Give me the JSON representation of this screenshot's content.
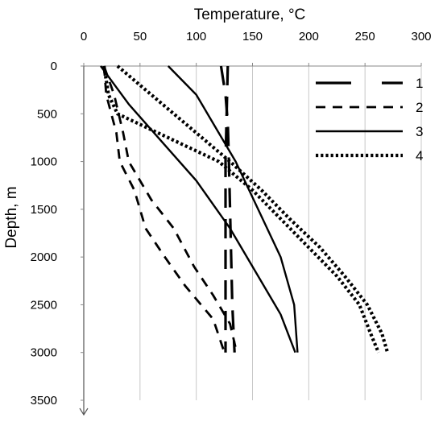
{
  "chart_data": {
    "type": "line",
    "xlabel": "Temperature, °C",
    "ylabel": "Depth, m",
    "x_axis_position": "top",
    "y_axis_inverted": true,
    "xlim": [
      0,
      300
    ],
    "ylim": [
      0,
      3500
    ],
    "x_ticks": [
      0,
      50,
      100,
      150,
      200,
      250,
      300
    ],
    "y_ticks": [
      0,
      500,
      1000,
      1500,
      2000,
      2500,
      3000,
      3500
    ],
    "grid": "vertical only",
    "legend_position": "top-right",
    "series": [
      {
        "name": "1",
        "line_style": "long-dash",
        "color": "#000000",
        "branches": [
          {
            "points": [
              [
                128,
                0
              ],
              [
                127,
                500
              ],
              [
                126,
                1000
              ],
              [
                126,
                1500
              ],
              [
                126,
                2000
              ],
              [
                126,
                2500
              ],
              [
                126,
                3000
              ]
            ]
          },
          {
            "points": [
              [
                122,
                0
              ],
              [
                126,
                300
              ],
              [
                128,
                600
              ],
              [
                129,
                1000
              ],
              [
                130,
                1500
              ],
              [
                131,
                2000
              ],
              [
                132,
                2500
              ],
              [
                134,
                3000
              ]
            ]
          }
        ]
      },
      {
        "name": "2",
        "line_style": "dash",
        "color": "#000000",
        "branches": [
          {
            "points": [
              [
                18,
                0
              ],
              [
                20,
                300
              ],
              [
                29,
                700
              ],
              [
                32,
                1000
              ],
              [
                45,
                1300
              ],
              [
                55,
                1700
              ],
              [
                72,
                2000
              ],
              [
                90,
                2300
              ],
              [
                115,
                2650
              ],
              [
                125,
                3000
              ]
            ]
          },
          {
            "points": [
              [
                18,
                0
              ],
              [
                27,
                300
              ],
              [
                35,
                700
              ],
              [
                40,
                1000
              ],
              [
                60,
                1400
              ],
              [
                80,
                1700
              ],
              [
                98,
                2100
              ],
              [
                115,
                2400
              ],
              [
                130,
                2700
              ],
              [
                136,
                3000
              ]
            ]
          }
        ]
      },
      {
        "name": "3",
        "line_style": "solid",
        "color": "#000000",
        "branches": [
          {
            "points": [
              [
                15,
                0
              ],
              [
                40,
                400
              ],
              [
                70,
                800
              ],
              [
                100,
                1200
              ],
              [
                130,
                1700
              ],
              [
                155,
                2200
              ],
              [
                175,
                2600
              ],
              [
                188,
                3000
              ]
            ]
          },
          {
            "points": [
              [
                75,
                0
              ],
              [
                100,
                300
              ],
              [
                120,
                700
              ],
              [
                135,
                1000
              ],
              [
                155,
                1500
              ],
              [
                175,
                2000
              ],
              [
                187,
                2500
              ],
              [
                190,
                3000
              ]
            ]
          }
        ]
      },
      {
        "name": "4",
        "line_style": "dotted",
        "color": "#000000",
        "branches": [
          {
            "points": [
              [
                18,
                0
              ],
              [
                22,
                300
              ],
              [
                30,
                500
              ],
              [
                120,
                1000
              ],
              [
                150,
                1300
              ],
              [
                175,
                1600
              ],
              [
                200,
                1900
              ],
              [
                225,
                2200
              ],
              [
                245,
                2500
              ],
              [
                255,
                2800
              ],
              [
                262,
                3000
              ]
            ]
          },
          {
            "points": [
              [
                30,
                0
              ],
              [
                60,
                300
              ],
              [
                100,
                700
              ],
              [
                130,
                1000
              ],
              [
                158,
                1300
              ],
              [
                183,
                1600
              ],
              [
                210,
                1900
              ],
              [
                232,
                2200
              ],
              [
                252,
                2500
              ],
              [
                265,
                2800
              ],
              [
                270,
                3000
              ]
            ]
          }
        ]
      }
    ]
  }
}
